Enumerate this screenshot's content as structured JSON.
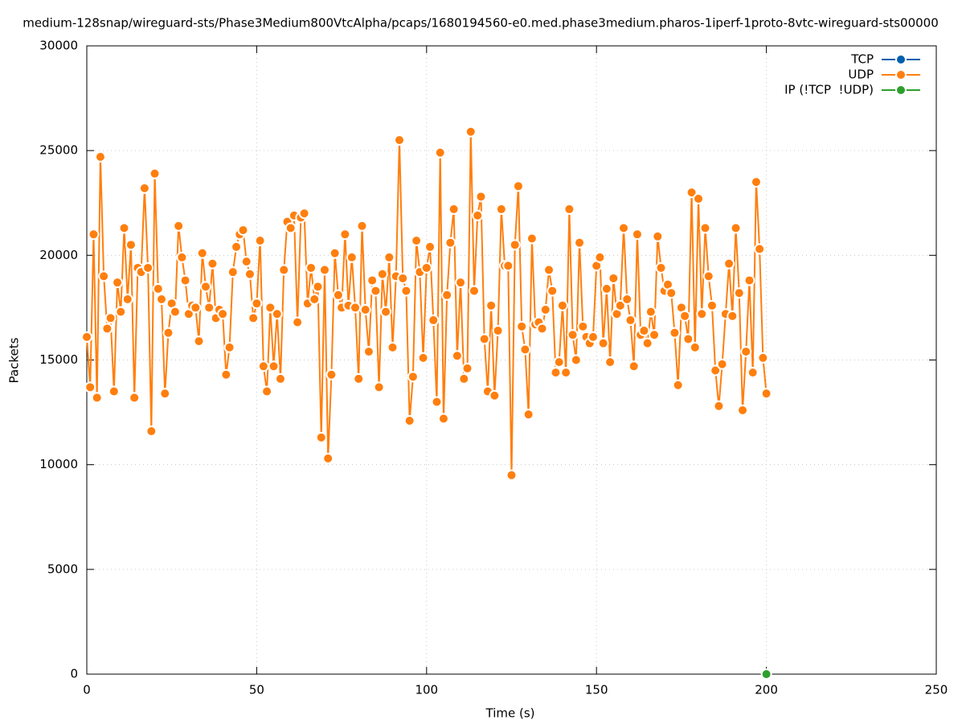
{
  "chart_data": {
    "type": "line",
    "title": "medium-128snap/wireguard-sts/Phase3Medium800VtcAlpha/pcaps/1680194560-e0.med.phase3medium.pharos-1iperf-1proto-8vtc-wireguard-sts00000",
    "x_label": "Time (s)",
    "y_label": "Packets",
    "xlim": [
      0,
      250
    ],
    "xticks": [
      0,
      50,
      100,
      150,
      200,
      250
    ],
    "ylim": [
      0,
      30000
    ],
    "yticks": [
      0,
      5000,
      10000,
      15000,
      20000,
      25000,
      30000
    ],
    "grid": true,
    "legend": "top-right",
    "series": [
      {
        "name": "TCP",
        "color": "#0060ad",
        "x": [],
        "values": []
      },
      {
        "name": "UDP",
        "color": "#ff7f0e",
        "x": [
          0,
          1,
          2,
          3,
          4,
          5,
          6,
          7,
          8,
          9,
          10,
          11,
          12,
          13,
          14,
          15,
          16,
          17,
          18,
          19,
          20,
          21,
          22,
          23,
          24,
          25,
          26,
          27,
          28,
          29,
          30,
          31,
          32,
          33,
          34,
          35,
          36,
          37,
          38,
          39,
          40,
          41,
          42,
          43,
          44,
          45,
          46,
          47,
          48,
          49,
          50,
          51,
          52,
          53,
          54,
          55,
          56,
          57,
          58,
          59,
          60,
          61,
          62,
          63,
          64,
          65,
          66,
          67,
          68,
          69,
          70,
          71,
          72,
          73,
          74,
          75,
          76,
          77,
          78,
          79,
          80,
          81,
          82,
          83,
          84,
          85,
          86,
          87,
          88,
          89,
          90,
          91,
          92,
          93,
          94,
          95,
          96,
          97,
          98,
          99,
          100,
          101,
          102,
          103,
          104,
          105,
          106,
          107,
          108,
          109,
          110,
          111,
          112,
          113,
          114,
          115,
          116,
          117,
          118,
          119,
          120,
          121,
          122,
          123,
          124,
          125,
          126,
          127,
          128,
          129,
          130,
          131,
          132,
          133,
          134,
          135,
          136,
          137,
          138,
          139,
          140,
          141,
          142,
          143,
          144,
          145,
          146,
          147,
          148,
          149,
          150,
          151,
          152,
          153,
          154,
          155,
          156,
          157,
          158,
          159,
          160,
          161,
          162,
          163,
          164,
          165,
          166,
          167,
          168,
          169,
          170,
          171,
          172,
          173,
          174,
          175,
          176,
          177,
          178,
          179,
          180,
          181,
          182,
          183,
          184,
          185,
          186,
          187,
          188,
          189,
          190,
          191,
          192,
          193,
          194,
          195,
          196,
          197,
          198,
          199,
          200
        ],
        "values": [
          16100,
          13700,
          21000,
          13200,
          24700,
          19000,
          16500,
          17000,
          13500,
          18700,
          17300,
          21300,
          17900,
          20500,
          13200,
          19400,
          19200,
          23200,
          19400,
          11600,
          23900,
          18400,
          17900,
          13400,
          16300,
          17700,
          17300,
          21400,
          19900,
          18800,
          17200,
          17600,
          17500,
          15900,
          20100,
          18500,
          17500,
          19600,
          17000,
          17400,
          17200,
          14300,
          15600,
          19200,
          20400,
          21000,
          21200,
          19700,
          19100,
          17000,
          17700,
          20700,
          14700,
          13500,
          17500,
          14700,
          17200,
          14100,
          19300,
          21600,
          21300,
          21900,
          16800,
          21800,
          22000,
          17700,
          19400,
          17900,
          18500,
          11300,
          19300,
          10300,
          14300,
          20100,
          18100,
          17500,
          21000,
          17600,
          19900,
          17500,
          14100,
          21400,
          17400,
          15400,
          18800,
          18300,
          13700,
          19100,
          17300,
          19900,
          15600,
          19000,
          25500,
          18900,
          18300,
          12100,
          14200,
          20700,
          19200,
          15100,
          19400,
          20400,
          16900,
          13000,
          24900,
          12200,
          18100,
          20600,
          22200,
          15200,
          18700,
          14100,
          14600,
          25900,
          18300,
          21900,
          22800,
          16000,
          13500,
          17600,
          13300,
          16400,
          22200,
          19500,
          19500,
          9500,
          20500,
          23300,
          16600,
          15500,
          12400,
          20800,
          16700,
          16800,
          16500,
          17400,
          19300,
          18300,
          14400,
          14900,
          17600,
          14400,
          22200,
          16200,
          15000,
          20600,
          16600,
          16100,
          15800,
          16100,
          19500,
          19900,
          15800,
          18400,
          14900,
          18900,
          17200,
          17600,
          21300,
          17900,
          16900,
          14700,
          21000,
          16200,
          16400,
          15800,
          17300,
          16200,
          20900,
          19400,
          18300,
          18600,
          18200,
          16300,
          13800,
          17500,
          17100,
          16000,
          23000,
          15600,
          22700,
          17200,
          21300,
          19000,
          17600,
          14500,
          12800,
          14800,
          17200,
          19600,
          17100,
          21300,
          18200,
          12600,
          15400,
          18800,
          14400,
          23500,
          20300,
          15100,
          13400
        ]
      },
      {
        "name": "IP (!TCP  !UDP)",
        "color": "#2ca02c",
        "x": [
          200
        ],
        "values": [
          0
        ]
      }
    ]
  }
}
